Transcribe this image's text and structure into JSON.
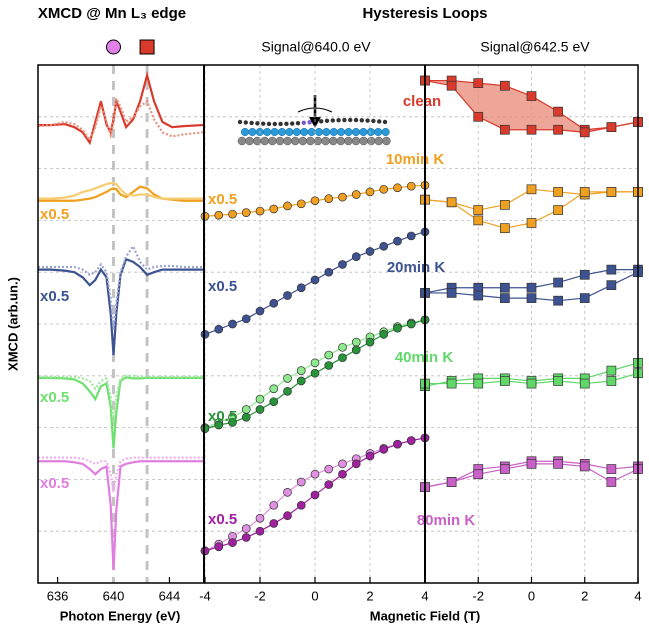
{
  "chart_data": [
    {
      "type": "line",
      "title": "XMCD @ Mn L₃ edge",
      "xlabel": "Photon Energy (eV)",
      "ylabel": "XMCD (arb.un.)",
      "xlim": [
        634.6,
        646.4
      ],
      "xticks": [
        636,
        640,
        644
      ],
      "ylim": [
        0,
        10
      ],
      "yticks": [
        1,
        2,
        3,
        4,
        5,
        6,
        7,
        8,
        9
      ],
      "grid": true,
      "markers": [
        {
          "x": 640,
          "shape": "circle",
          "color": "#e080e8"
        },
        {
          "x": 642.4,
          "shape": "square",
          "color": "#d93a2b"
        }
      ],
      "x": [
        634.6,
        635.5,
        636.5,
        637.2,
        637.8,
        638.3,
        638.7,
        639.1,
        639.5,
        639.8,
        640.0,
        640.2,
        640.5,
        640.9,
        641.4,
        641.9,
        642.4,
        642.9,
        643.5,
        644.2,
        645,
        646.4
      ],
      "series": [
        {
          "color": "#d93a2b",
          "style": "solid",
          "values": [
            8.84,
            8.84,
            8.86,
            8.8,
            8.7,
            8.5,
            8.9,
            9.3,
            8.85,
            8.7,
            8.95,
            9.3,
            9.1,
            8.8,
            8.95,
            9.3,
            9.8,
            9.3,
            8.9,
            8.8,
            8.82,
            8.84
          ]
        },
        {
          "color": "#e8907e",
          "style": "dotted",
          "values": [
            8.82,
            8.84,
            8.9,
            8.86,
            8.75,
            8.55,
            8.8,
            9.2,
            8.9,
            8.65,
            8.9,
            9.35,
            9.2,
            8.9,
            9.0,
            9.2,
            9.3,
            8.95,
            8.7,
            8.62,
            8.66,
            8.7
          ]
        },
        {
          "color": "#f0a020",
          "style": "solid",
          "label": "x0.5",
          "values": [
            7.38,
            7.38,
            7.38,
            7.38,
            7.4,
            7.42,
            7.45,
            7.5,
            7.55,
            7.6,
            7.62,
            7.6,
            7.5,
            7.45,
            7.55,
            7.65,
            7.62,
            7.5,
            7.42,
            7.4,
            7.38,
            7.38
          ]
        },
        {
          "color": "#f8cc70",
          "style": "solid",
          "values": [
            7.42,
            7.42,
            7.44,
            7.48,
            7.55,
            7.58,
            7.62,
            7.66,
            7.7,
            7.72,
            7.72,
            7.7,
            7.6,
            7.5,
            7.48,
            7.5,
            7.5,
            7.45,
            7.42,
            7.42,
            7.42,
            7.42
          ]
        },
        {
          "color": "#3d5290",
          "style": "solid",
          "label": "x0.5",
          "values": [
            6.05,
            6.05,
            6.03,
            6.0,
            5.9,
            5.75,
            5.85,
            6.05,
            5.9,
            5.2,
            4.4,
            5.2,
            5.95,
            6.25,
            6.2,
            6.1,
            5.95,
            6.0,
            6.05,
            6.05,
            6.05,
            6.05
          ]
        },
        {
          "color": "#9aa6d0",
          "style": "dotted",
          "values": [
            6.1,
            6.1,
            6.1,
            6.1,
            6.05,
            5.95,
            6.0,
            6.15,
            6.0,
            5.5,
            4.9,
            5.4,
            6.0,
            6.3,
            6.5,
            6.2,
            6.05,
            6.1,
            6.12,
            6.12,
            6.1,
            6.1
          ]
        },
        {
          "color": "#6ee070",
          "style": "solid",
          "label": "x0.5",
          "values": [
            3.96,
            3.96,
            3.95,
            3.93,
            3.85,
            3.7,
            3.55,
            3.8,
            3.85,
            3.4,
            2.6,
            3.3,
            3.9,
            3.97,
            3.95,
            3.95,
            3.96,
            3.96,
            3.96,
            3.96,
            3.96,
            3.96
          ]
        },
        {
          "color": "#9ee89e",
          "style": "dotted",
          "values": [
            3.98,
            3.98,
            3.98,
            3.98,
            3.95,
            3.9,
            3.75,
            3.9,
            3.95,
            3.6,
            3.1,
            3.6,
            3.95,
            4.0,
            4.0,
            3.98,
            3.98,
            3.98,
            3.98,
            3.98,
            3.98,
            3.98
          ]
        },
        {
          "color": "#e07ee0",
          "style": "solid",
          "label": "x0.5",
          "values": [
            2.35,
            2.35,
            2.35,
            2.33,
            2.3,
            2.2,
            2.1,
            2.2,
            2.25,
            1.5,
            0.25,
            1.4,
            2.25,
            2.3,
            2.33,
            2.35,
            2.35,
            2.35,
            2.35,
            2.35,
            2.35,
            2.35
          ]
        },
        {
          "color": "#efb0ef",
          "style": "dotted",
          "values": [
            2.42,
            2.42,
            2.42,
            2.42,
            2.4,
            2.35,
            2.3,
            2.35,
            2.35,
            2.1,
            1.75,
            2.1,
            2.35,
            2.4,
            2.42,
            2.42,
            2.42,
            2.42,
            2.42,
            2.42,
            2.42,
            2.42
          ]
        }
      ]
    },
    {
      "type": "line",
      "title": "Hysteresis Loops",
      "subtitle": "Signal@640.0 eV",
      "xlabel": "Magnetic Field (T)",
      "marker": "circle",
      "xlim": [
        -4,
        4
      ],
      "xticks": [
        -4,
        -2,
        0,
        2,
        4
      ],
      "ylim": [
        0,
        10
      ],
      "yticks": [
        1,
        2,
        3,
        4,
        5,
        6,
        7,
        8,
        9
      ],
      "grid": true,
      "x": [
        -4,
        -3.5,
        -3,
        -2.5,
        -2,
        -1.5,
        -1,
        -0.5,
        0,
        0.5,
        1,
        1.5,
        2,
        2.5,
        3,
        3.5,
        4
      ],
      "series": [
        {
          "color": "#f0a020",
          "label": "x0.5",
          "values": [
            7.08,
            7.1,
            7.12,
            7.15,
            7.18,
            7.22,
            7.28,
            7.32,
            7.38,
            7.42,
            7.45,
            7.5,
            7.55,
            7.6,
            7.63,
            7.66,
            7.68
          ]
        },
        {
          "color": "#3d5290",
          "label": "x0.5",
          "values": [
            4.8,
            4.9,
            5.0,
            5.1,
            5.25,
            5.4,
            5.55,
            5.7,
            5.85,
            6.0,
            6.15,
            6.3,
            6.4,
            6.5,
            6.6,
            6.7,
            6.78
          ]
        },
        {
          "color": "#8ee88e",
          "values": [
            3.0,
            3.1,
            3.2,
            3.35,
            3.55,
            3.75,
            3.95,
            4.1,
            4.25,
            4.4,
            4.55,
            4.65,
            4.75,
            4.85,
            4.95,
            5.02,
            5.08
          ]
        },
        {
          "color": "#28943a",
          "label": "x0.5",
          "values": [
            2.98,
            3.05,
            3.1,
            3.2,
            3.35,
            3.5,
            3.7,
            3.9,
            4.05,
            4.2,
            4.35,
            4.5,
            4.65,
            4.8,
            4.92,
            5.0,
            5.08
          ]
        },
        {
          "color": "#e090e0",
          "values": [
            0.62,
            0.75,
            0.9,
            1.05,
            1.25,
            1.5,
            1.75,
            1.95,
            2.1,
            2.2,
            2.3,
            2.4,
            2.5,
            2.6,
            2.68,
            2.75,
            2.8
          ]
        },
        {
          "color": "#a020a0",
          "label": "x0.5",
          "values": [
            0.62,
            0.7,
            0.78,
            0.88,
            1.0,
            1.15,
            1.3,
            1.5,
            1.7,
            1.9,
            2.1,
            2.3,
            2.45,
            2.58,
            2.68,
            2.75,
            2.8
          ]
        }
      ]
    },
    {
      "type": "line",
      "subtitle": "Signal@642.5 eV",
      "marker": "square",
      "xlim": [
        -4,
        4
      ],
      "xticks": [
        -2,
        0,
        2,
        4
      ],
      "ylim": [
        0,
        10
      ],
      "yticks": [
        1,
        2,
        3,
        4,
        5,
        6,
        7,
        8,
        9
      ],
      "grid": true,
      "x": [
        -4,
        -3,
        -2,
        -1,
        0,
        1,
        2,
        3,
        4
      ],
      "series": [
        {
          "name": "clean",
          "color": "#d93a2b",
          "fill": "#e8907e",
          "values": [
            9.7,
            9.7,
            9.65,
            9.6,
            9.4,
            9.1,
            8.75,
            8.8,
            8.9
          ],
          "return_values": [
            9.7,
            9.6,
            9.0,
            8.75,
            8.75,
            8.75,
            8.7,
            8.8,
            8.9
          ]
        },
        {
          "name": "10min K",
          "color": "#f0a020",
          "values": [
            7.4,
            7.35,
            7.2,
            7.3,
            7.6,
            7.55,
            7.5,
            7.55,
            7.55
          ],
          "return_values": [
            7.4,
            7.35,
            7.0,
            6.85,
            6.95,
            7.2,
            7.55,
            7.55,
            7.55
          ]
        },
        {
          "name": "20min K",
          "color": "#3d5290",
          "values": [
            5.6,
            5.7,
            5.7,
            5.7,
            5.7,
            5.8,
            5.95,
            6.05,
            6.05
          ],
          "return_values": [
            5.6,
            5.6,
            5.55,
            5.5,
            5.5,
            5.45,
            5.5,
            5.75,
            6.0
          ]
        },
        {
          "name": "40min K",
          "color": "#60d868",
          "values": [
            3.8,
            3.9,
            3.95,
            3.95,
            3.9,
            3.95,
            3.95,
            4.1,
            4.25
          ],
          "return_values": [
            3.85,
            3.85,
            3.85,
            3.9,
            3.85,
            3.9,
            3.85,
            3.9,
            4.05
          ]
        },
        {
          "name": "80min K",
          "color": "#c860c8",
          "values": [
            1.85,
            1.95,
            2.2,
            2.25,
            2.35,
            2.35,
            2.3,
            2.2,
            2.25
          ],
          "return_values": [
            1.85,
            1.95,
            2.1,
            2.2,
            2.3,
            2.3,
            2.25,
            1.95,
            2.2
          ]
        }
      ]
    }
  ]
}
